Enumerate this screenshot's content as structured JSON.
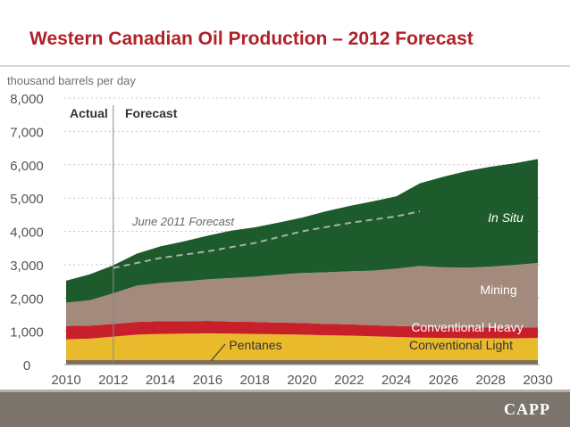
{
  "slide": {
    "title": "Western Canadian Oil Production – 2012 Forecast",
    "logo_text": "CAPP"
  },
  "colors": {
    "title": "#b22027",
    "in_situ": "#1e5b2c",
    "mining": "#a48a7c",
    "conventional_heavy": "#c8202b",
    "conventional_light": "#e8ba2c",
    "pentanes": "#7e6f55",
    "forecast_line": "#a8b2a8"
  },
  "chart_data": {
    "type": "area",
    "stacked": true,
    "unit_label": "thousand barrels per day",
    "x": [
      2010,
      2011,
      2012,
      2013,
      2014,
      2015,
      2016,
      2017,
      2018,
      2019,
      2020,
      2021,
      2022,
      2023,
      2024,
      2025,
      2026,
      2027,
      2028,
      2029,
      2030
    ],
    "xticks": [
      2010,
      2012,
      2014,
      2016,
      2018,
      2020,
      2022,
      2024,
      2026,
      2028,
      2030
    ],
    "ylim": [
      0,
      8000
    ],
    "yticks": [
      "0",
      "1,000",
      "2,000",
      "3,000",
      "4,000",
      "5,000",
      "6,000",
      "7,000",
      "8,000"
    ],
    "grid": "horizontal dashed",
    "actual_label": "Actual",
    "forecast_label": "Forecast",
    "divider_x": 2012,
    "series": [
      {
        "name": "Pentanes",
        "color_key": "pentanes",
        "values": [
          140,
          140,
          140,
          140,
          140,
          140,
          140,
          140,
          140,
          140,
          140,
          140,
          140,
          140,
          140,
          140,
          140,
          140,
          140,
          140,
          140
        ]
      },
      {
        "name": "Conventional Light",
        "color_key": "conventional_light",
        "values": [
          620,
          640,
          700,
          760,
          780,
          790,
          800,
          790,
          780,
          770,
          760,
          740,
          730,
          710,
          690,
          670,
          660,
          650,
          650,
          650,
          660
        ]
      },
      {
        "name": "Conventional Heavy",
        "color_key": "conventional_heavy",
        "values": [
          400,
          390,
          380,
          380,
          380,
          370,
          370,
          360,
          360,
          350,
          350,
          340,
          340,
          330,
          330,
          330,
          320,
          320,
          320,
          320,
          320
        ]
      },
      {
        "name": "Mining",
        "color_key": "mining",
        "values": [
          700,
          760,
          920,
          1090,
          1150,
          1200,
          1250,
          1310,
          1360,
          1440,
          1500,
          1550,
          1590,
          1640,
          1720,
          1820,
          1800,
          1800,
          1830,
          1880,
          1930
        ]
      },
      {
        "name": "In Situ",
        "color_key": "in_situ",
        "values": [
          660,
          780,
          840,
          960,
          1100,
          1200,
          1310,
          1420,
          1480,
          1560,
          1660,
          1830,
          1960,
          2080,
          2170,
          2480,
          2720,
          2900,
          3000,
          3050,
          3120
        ]
      }
    ],
    "reference_line": {
      "name": "June 2011 Forecast",
      "style": "dashed",
      "x": [
        2012,
        2014,
        2016,
        2018,
        2020,
        2022,
        2024,
        2025
      ],
      "values": [
        2900,
        3200,
        3400,
        3650,
        4000,
        4250,
        4450,
        4600
      ]
    }
  }
}
